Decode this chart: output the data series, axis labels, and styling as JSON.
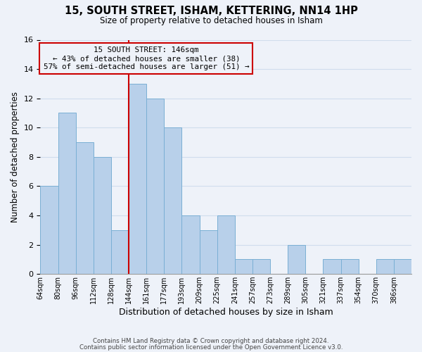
{
  "title": "15, SOUTH STREET, ISHAM, KETTERING, NN14 1HP",
  "subtitle": "Size of property relative to detached houses in Isham",
  "xlabel": "Distribution of detached houses by size in Isham",
  "ylabel": "Number of detached properties",
  "bin_labels": [
    "64sqm",
    "80sqm",
    "96sqm",
    "112sqm",
    "128sqm",
    "144sqm",
    "161sqm",
    "177sqm",
    "193sqm",
    "209sqm",
    "225sqm",
    "241sqm",
    "257sqm",
    "273sqm",
    "289sqm",
    "305sqm",
    "321sqm",
    "337sqm",
    "354sqm",
    "370sqm",
    "386sqm"
  ],
  "values": [
    6,
    11,
    9,
    8,
    3,
    13,
    12,
    10,
    4,
    3,
    4,
    1,
    1,
    0,
    2,
    0,
    1,
    1,
    0,
    1,
    1
  ],
  "bar_color": "#b8d0ea",
  "bar_edge_color": "#7aafd4",
  "annotation_line_idx": 5,
  "annotation_box_text": "15 SOUTH STREET: 146sqm\n← 43% of detached houses are smaller (38)\n57% of semi-detached houses are larger (51) →",
  "annotation_line_color": "#cc0000",
  "annotation_box_edge_color": "#cc0000",
  "ylim": [
    0,
    16
  ],
  "yticks": [
    0,
    2,
    4,
    6,
    8,
    10,
    12,
    14,
    16
  ],
  "grid_color": "#d0dded",
  "background_color": "#eef2f9",
  "footer_line1": "Contains HM Land Registry data © Crown copyright and database right 2024.",
  "footer_line2": "Contains public sector information licensed under the Open Government Licence v3.0."
}
